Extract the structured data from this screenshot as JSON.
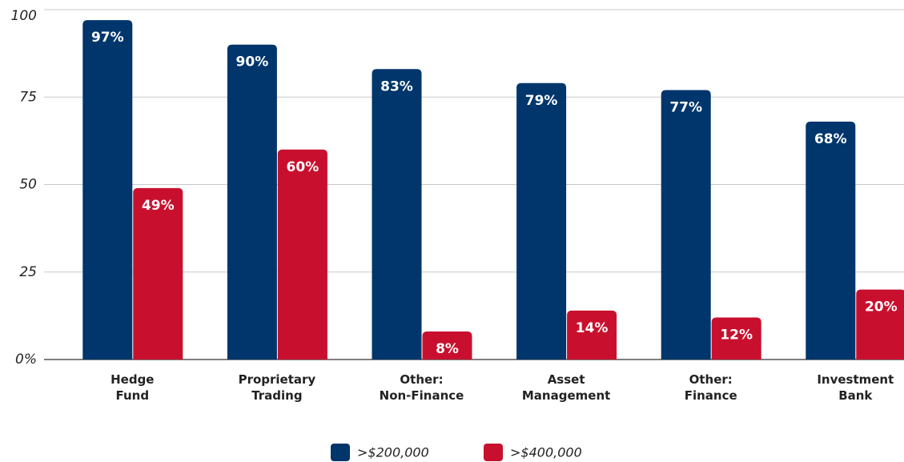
{
  "chart_data": {
    "type": "bar",
    "categories": [
      "Hedge Fund",
      "Proprietary Trading",
      "Other: Non-Finance",
      "Asset Management",
      "Other: Finance",
      "Investment Bank"
    ],
    "series": [
      {
        "name": ">$200,000",
        "color": "#00366b",
        "values": [
          97,
          90,
          83,
          79,
          77,
          68
        ],
        "value_labels": [
          "97%",
          "90%",
          "83%",
          "79%",
          "77%",
          "68%"
        ]
      },
      {
        "name": ">$400,000",
        "color": "#c8102e",
        "values": [
          49,
          60,
          8,
          14,
          12,
          20
        ],
        "value_labels": [
          "49%",
          "60%",
          "8%",
          "14%",
          "12%",
          "20%"
        ]
      }
    ],
    "ylim": [
      0,
      100
    ],
    "yticks": [
      {
        "value": 0,
        "label": "0%"
      },
      25,
      50,
      75,
      100
    ],
    "grid": true,
    "legend": "bottom"
  }
}
